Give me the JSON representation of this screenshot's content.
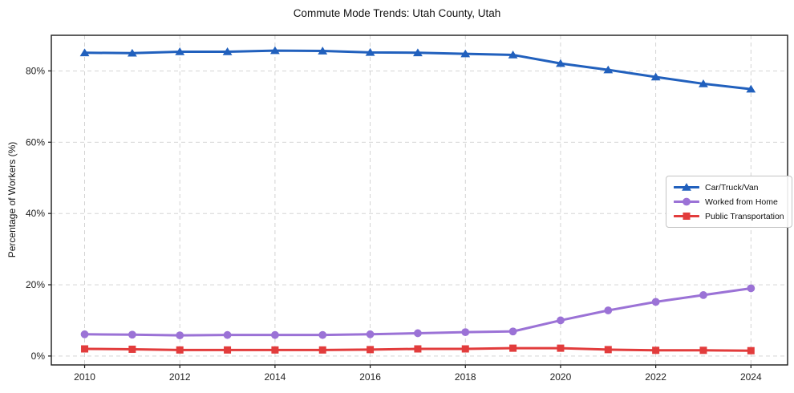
{
  "chart_data": {
    "type": "line",
    "title": "Commute Mode Trends: Utah County, Utah",
    "xlabel": "",
    "ylabel": "Percentage of Workers (%)",
    "x": [
      2010,
      2011,
      2012,
      2013,
      2014,
      2015,
      2016,
      2017,
      2018,
      2019,
      2020,
      2021,
      2022,
      2023,
      2024
    ],
    "series": [
      {
        "name": "Car/Truck/Van",
        "marker": "triangle",
        "color": "#2160bd",
        "values": [
          85.1,
          85.0,
          85.4,
          85.4,
          85.7,
          85.6,
          85.2,
          85.1,
          84.8,
          84.5,
          82.1,
          80.3,
          78.3,
          76.4,
          74.9
        ]
      },
      {
        "name": "Worked from Home",
        "marker": "circle",
        "color": "#9b72d6",
        "values": [
          6.1,
          6.0,
          5.8,
          5.9,
          5.9,
          5.9,
          6.1,
          6.4,
          6.7,
          6.9,
          10.0,
          12.8,
          15.2,
          17.1,
          19.0
        ]
      },
      {
        "name": "Public Transportation",
        "marker": "square",
        "color": "#e23c3c",
        "values": [
          2.0,
          1.9,
          1.7,
          1.7,
          1.7,
          1.7,
          1.8,
          2.0,
          2.0,
          2.2,
          2.2,
          1.8,
          1.6,
          1.6,
          1.5
        ]
      }
    ],
    "xticks": [
      2010,
      2012,
      2014,
      2016,
      2018,
      2020,
      2022,
      2024
    ],
    "yticks": [
      0,
      20,
      40,
      60,
      80
    ],
    "ytick_labels": [
      "0%",
      "20%",
      "40%",
      "60%",
      "80%"
    ],
    "xlim": [
      2009.3,
      2024.77
    ],
    "ylim": [
      -2.5,
      90
    ],
    "grid": true,
    "grid_style": "dashed",
    "legend_position": "center-right"
  }
}
